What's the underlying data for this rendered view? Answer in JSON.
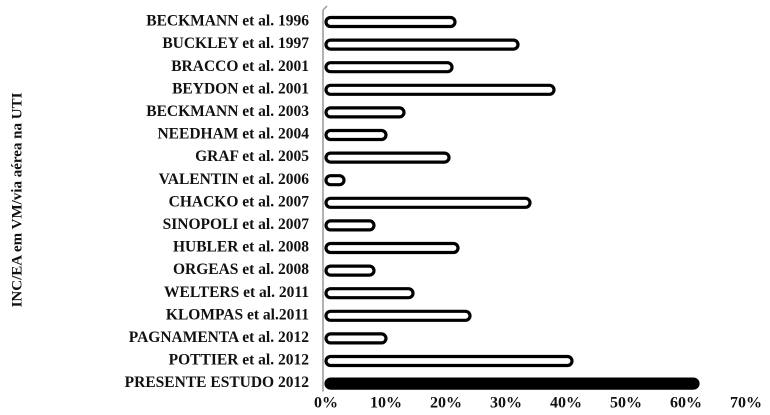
{
  "chart_data": {
    "type": "bar",
    "orientation": "horizontal",
    "ylabel": "INC/EA em VM/via aérea na UTI",
    "xlabel": "",
    "xlim": [
      0,
      70
    ],
    "x_ticks": [
      "0%",
      "10%",
      "20%",
      "30%",
      "40%",
      "50%",
      "60%",
      "70%"
    ],
    "grid": false,
    "categories": [
      "BECKMANN et al. 1996",
      "BUCKLEY et al. 1997",
      "BRACCO et al. 2001",
      "BEYDON et al. 2001",
      "BECKMANN et al. 2003",
      "NEEDHAM et al. 2004",
      "GRAF et al. 2005",
      "VALENTIN et al. 2006",
      "CHACKO et al. 2007",
      "SINOPOLI et al. 2007",
      "HUBLER et al. 2008",
      "ORGEAS et al. 2008",
      "WELTERS et al. 2011",
      "KLOMPAS et al.2011",
      "PAGNAMENTA et al. 2012",
      "POTTIER et al. 2012",
      "PRESENTE ESTUDO 2012"
    ],
    "values": [
      21.5,
      32,
      21,
      38,
      13,
      10,
      20.5,
      3,
      34,
      8,
      22,
      8,
      14.5,
      24,
      10,
      41,
      62
    ],
    "colors": {
      "default_fill": "#ffffff",
      "default_stroke": "#000000",
      "highlight_fill": "#000000",
      "highlight_index": 16
    }
  }
}
